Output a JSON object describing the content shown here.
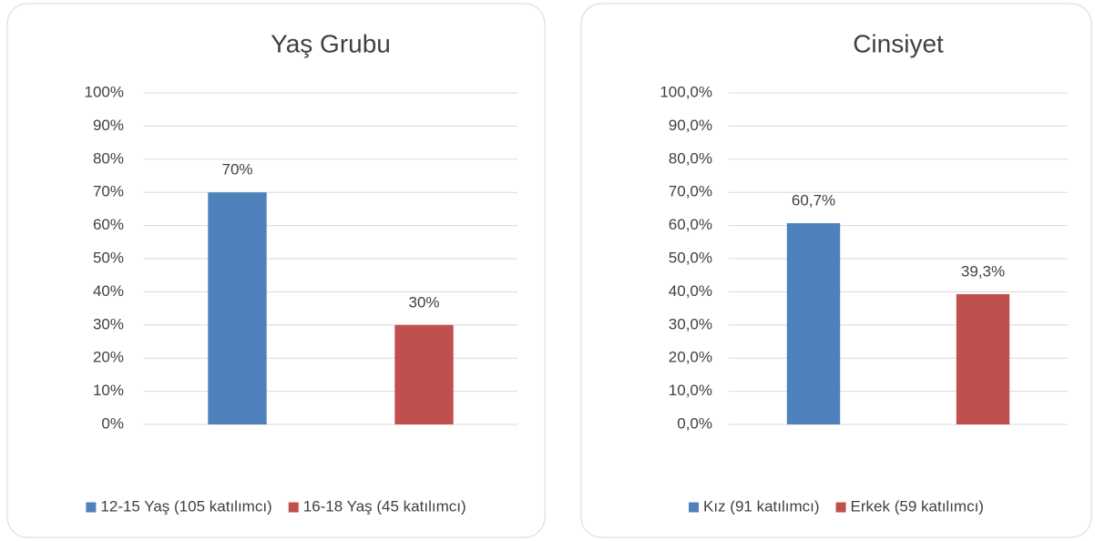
{
  "chart_data": [
    {
      "type": "bar",
      "title": "Yaş Grubu",
      "categories": [
        null
      ],
      "series": [
        {
          "name": "12-15 Yaş (105 katılımcı)",
          "color": "#4f81bd",
          "values": [
            70
          ],
          "value_labels": [
            "70%"
          ]
        },
        {
          "name": "16-18 Yaş (45 katılımcı)",
          "color": "#c0504d",
          "values": [
            30
          ],
          "value_labels": [
            "30%"
          ]
        }
      ],
      "ylim": [
        0,
        100
      ],
      "yticks": [
        {
          "value": 0,
          "label": "0%"
        },
        {
          "value": 10,
          "label": "10%"
        },
        {
          "value": 20,
          "label": "20%"
        },
        {
          "value": 30,
          "label": "30%"
        },
        {
          "value": 40,
          "label": "40%"
        },
        {
          "value": 50,
          "label": "50%"
        },
        {
          "value": 60,
          "label": "60%"
        },
        {
          "value": 70,
          "label": "70%"
        },
        {
          "value": 80,
          "label": "80%"
        },
        {
          "value": 90,
          "label": "90%"
        },
        {
          "value": 100,
          "label": "100%"
        }
      ],
      "grid": true,
      "legend": "bottom"
    },
    {
      "type": "bar",
      "title": "Cinsiyet",
      "categories": [
        null
      ],
      "series": [
        {
          "name": "Kız (91 katılımcı)",
          "color": "#4f81bd",
          "values": [
            60.7
          ],
          "value_labels": [
            "60,7%"
          ]
        },
        {
          "name": "Erkek (59 katılımcı)",
          "color": "#c0504d",
          "values": [
            39.3
          ],
          "value_labels": [
            "39,3%"
          ]
        }
      ],
      "ylim": [
        0,
        100
      ],
      "yticks": [
        {
          "value": 0,
          "label": "0,0%"
        },
        {
          "value": 10,
          "label": "10,0%"
        },
        {
          "value": 20,
          "label": "20,0%"
        },
        {
          "value": 30,
          "label": "30,0%"
        },
        {
          "value": 40,
          "label": "40,0%"
        },
        {
          "value": 50,
          "label": "50,0%"
        },
        {
          "value": 60,
          "label": "60,0%"
        },
        {
          "value": 70,
          "label": "70,0%"
        },
        {
          "value": 80,
          "label": "80,0%"
        },
        {
          "value": 90,
          "label": "90,0%"
        },
        {
          "value": 100,
          "label": "100,0%"
        }
      ],
      "grid": true,
      "legend": "bottom"
    }
  ]
}
